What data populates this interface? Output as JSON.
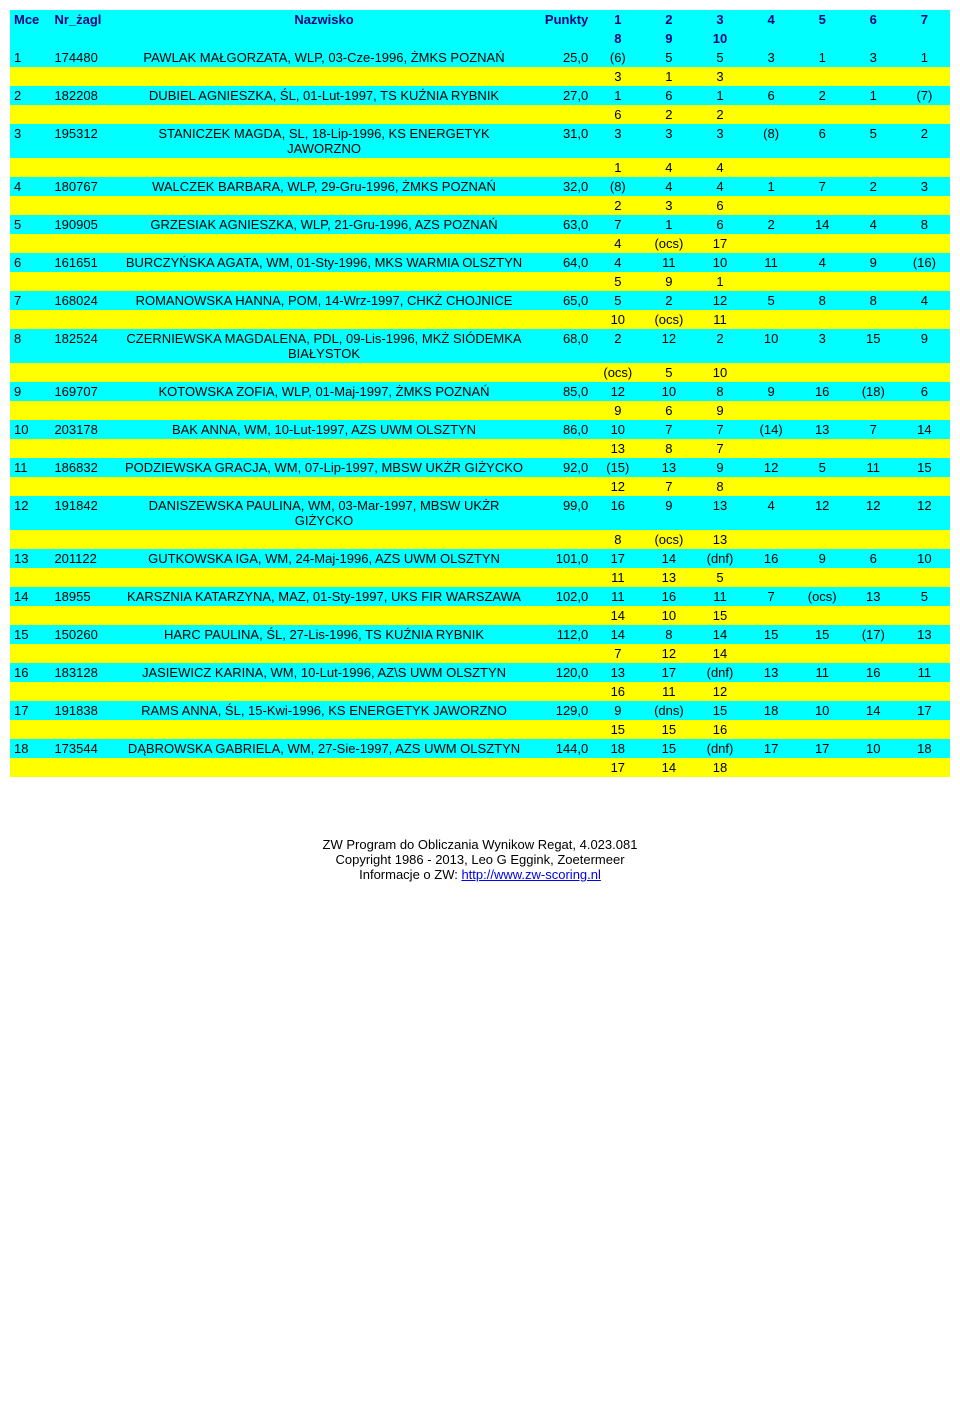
{
  "headers": {
    "mce": "Mce",
    "nr": "Nr_żagl",
    "name": "Nazwisko",
    "pts": "Punkty",
    "r1": "1",
    "r2": "2",
    "r3": "3",
    "r4": "4",
    "r5": "5",
    "r6": "6",
    "r7": "7",
    "r8": "8",
    "r9": "9",
    "r10": "10"
  },
  "rows": [
    {
      "mce": "1",
      "nr": "174480",
      "name": "PAWLAK MAŁGORZATA, WLP, 03-Cze-1996, ŻMKS POZNAŃ",
      "pts": "25,0",
      "r": [
        "(6)",
        "5",
        "5",
        "3",
        "1",
        "3",
        "1"
      ],
      "s": [
        "3",
        "1",
        "3"
      ]
    },
    {
      "mce": "2",
      "nr": "182208",
      "name": "DUBIEL AGNIESZKA, ŚL, 01-Lut-1997, TS KUŹNIA RYBNIK",
      "pts": "27,0",
      "r": [
        "1",
        "6",
        "1",
        "6",
        "2",
        "1",
        "(7)"
      ],
      "s": [
        "6",
        "2",
        "2"
      ]
    },
    {
      "mce": "3",
      "nr": "195312",
      "name": "STANICZEK MAGDA, SL, 18-Lip-1996, KS ENERGETYK JAWORZNO",
      "pts": "31,0",
      "r": [
        "3",
        "3",
        "3",
        "(8)",
        "6",
        "5",
        "2"
      ],
      "s": [
        "1",
        "4",
        "4"
      ]
    },
    {
      "mce": "4",
      "nr": "180767",
      "name": "WALCZEK BARBARA, WLP, 29-Gru-1996, ŻMKS POZNAŃ",
      "pts": "32,0",
      "r": [
        "(8)",
        "4",
        "4",
        "1",
        "7",
        "2",
        "3"
      ],
      "s": [
        "2",
        "3",
        "6"
      ]
    },
    {
      "mce": "5",
      "nr": "190905",
      "name": "GRZESIAK AGNIESZKA, WLP, 21-Gru-1996, AZS POZNAŃ",
      "pts": "63,0",
      "r": [
        "7",
        "1",
        "6",
        "2",
        "14",
        "4",
        "8"
      ],
      "s": [
        "4",
        "(ocs)",
        "17"
      ]
    },
    {
      "mce": "6",
      "nr": "161651",
      "name": "BURCZYŃSKA AGATA, WM, 01-Sty-1996, MKS WARMIA OLSZTYN",
      "pts": "64,0",
      "r": [
        "4",
        "11",
        "10",
        "11",
        "4",
        "9",
        "(16)"
      ],
      "s": [
        "5",
        "9",
        "1"
      ]
    },
    {
      "mce": "7",
      "nr": "168024",
      "name": "ROMANOWSKA HANNA, POM, 14-Wrz-1997, CHKŻ CHOJNICE",
      "pts": "65,0",
      "r": [
        "5",
        "2",
        "12",
        "5",
        "8",
        "8",
        "4"
      ],
      "s": [
        "10",
        "(ocs)",
        "11"
      ]
    },
    {
      "mce": "8",
      "nr": "182524",
      "name": "CZERNIEWSKA MAGDALENA, PDL, 09-Lis-1996, MKŻ SIÓDEMKA BIAŁYSTOK",
      "pts": "68,0",
      "r": [
        "2",
        "12",
        "2",
        "10",
        "3",
        "15",
        "9"
      ],
      "s": [
        "(ocs)",
        "5",
        "10"
      ]
    },
    {
      "mce": "9",
      "nr": "169707",
      "name": "KOTOWSKA ZOFIA, WLP, 01-Maj-1997, ŻMKS POZNAŃ",
      "pts": "85,0",
      "r": [
        "12",
        "10",
        "8",
        "9",
        "16",
        "(18)",
        "6"
      ],
      "s": [
        "9",
        "6",
        "9"
      ]
    },
    {
      "mce": "10",
      "nr": "203178",
      "name": "BAK ANNA, WM, 10-Lut-1997, AZS UWM OLSZTYN",
      "pts": "86,0",
      "r": [
        "10",
        "7",
        "7",
        "(14)",
        "13",
        "7",
        "14"
      ],
      "s": [
        "13",
        "8",
        "7"
      ]
    },
    {
      "mce": "11",
      "nr": "186832",
      "name": "PODZIEWSKA GRACJA, WM, 07-Lip-1997, MBSW UKŻR GIŻYCKO",
      "pts": "92,0",
      "r": [
        "(15)",
        "13",
        "9",
        "12",
        "5",
        "11",
        "15"
      ],
      "s": [
        "12",
        "7",
        "8"
      ]
    },
    {
      "mce": "12",
      "nr": "191842",
      "name": "DANISZEWSKA PAULINA, WM, 03-Mar-1997, MBSW UKŻR GIŻYCKO",
      "pts": "99,0",
      "r": [
        "16",
        "9",
        "13",
        "4",
        "12",
        "12",
        "12"
      ],
      "s": [
        "8",
        "(ocs)",
        "13"
      ]
    },
    {
      "mce": "13",
      "nr": "201122",
      "name": "GUTKOWSKA IGA, WM, 24-Maj-1996, AZS UWM OLSZTYN",
      "pts": "101,0",
      "r": [
        "17",
        "14",
        "(dnf)",
        "16",
        "9",
        "6",
        "10"
      ],
      "s": [
        "11",
        "13",
        "5"
      ]
    },
    {
      "mce": "14",
      "nr": "18955",
      "name": "KARSZNIA KATARZYNA, MAZ, 01-Sty-1997, UKS FIR WARSZAWA",
      "pts": "102,0",
      "r": [
        "11",
        "16",
        "11",
        "7",
        "(ocs)",
        "13",
        "5"
      ],
      "s": [
        "14",
        "10",
        "15"
      ]
    },
    {
      "mce": "15",
      "nr": "150260",
      "name": "HARC PAULINA, ŚL, 27-Lis-1996, TS KUŹNIA RYBNIK",
      "pts": "112,0",
      "r": [
        "14",
        "8",
        "14",
        "15",
        "15",
        "(17)",
        "13"
      ],
      "s": [
        "7",
        "12",
        "14"
      ]
    },
    {
      "mce": "16",
      "nr": "183128",
      "name": "JASIEWICZ KARINA, WM, 10-Lut-1996, AZ\\S UWM OLSZTYN",
      "pts": "120,0",
      "r": [
        "13",
        "17",
        "(dnf)",
        "13",
        "11",
        "16",
        "11"
      ],
      "s": [
        "16",
        "11",
        "12"
      ]
    },
    {
      "mce": "17",
      "nr": "191838",
      "name": "RAMS ANNA, ŚL, 15-Kwi-1996, KS ENERGETYK JAWORZNO",
      "pts": "129,0",
      "r": [
        "9",
        "(dns)",
        "15",
        "18",
        "10",
        "14",
        "17"
      ],
      "s": [
        "15",
        "15",
        "16"
      ]
    },
    {
      "mce": "18",
      "nr": "173544",
      "name": "DĄBROWSKA GABRIELA, WM, 27-Sie-1997, AZS UWM OLSZTYN",
      "pts": "144,0",
      "r": [
        "18",
        "15",
        "(dnf)",
        "17",
        "17",
        "10",
        "18"
      ],
      "s": [
        "17",
        "14",
        "18"
      ]
    }
  ],
  "footer": {
    "line1": "ZW Program do Obliczania Wynikow Regat, 4.023.081",
    "line2": "Copyright 1986 - 2013, Leo G Eggink, Zoetermeer",
    "line3_prefix": "Informacje o ZW: ",
    "line3_link": "http://www.zw-scoring.nl"
  },
  "colors": {
    "header_bg": "#00ffff",
    "header_text": "#000080",
    "main_bg": "#00ffff",
    "sub_bg": "#ffff00"
  }
}
